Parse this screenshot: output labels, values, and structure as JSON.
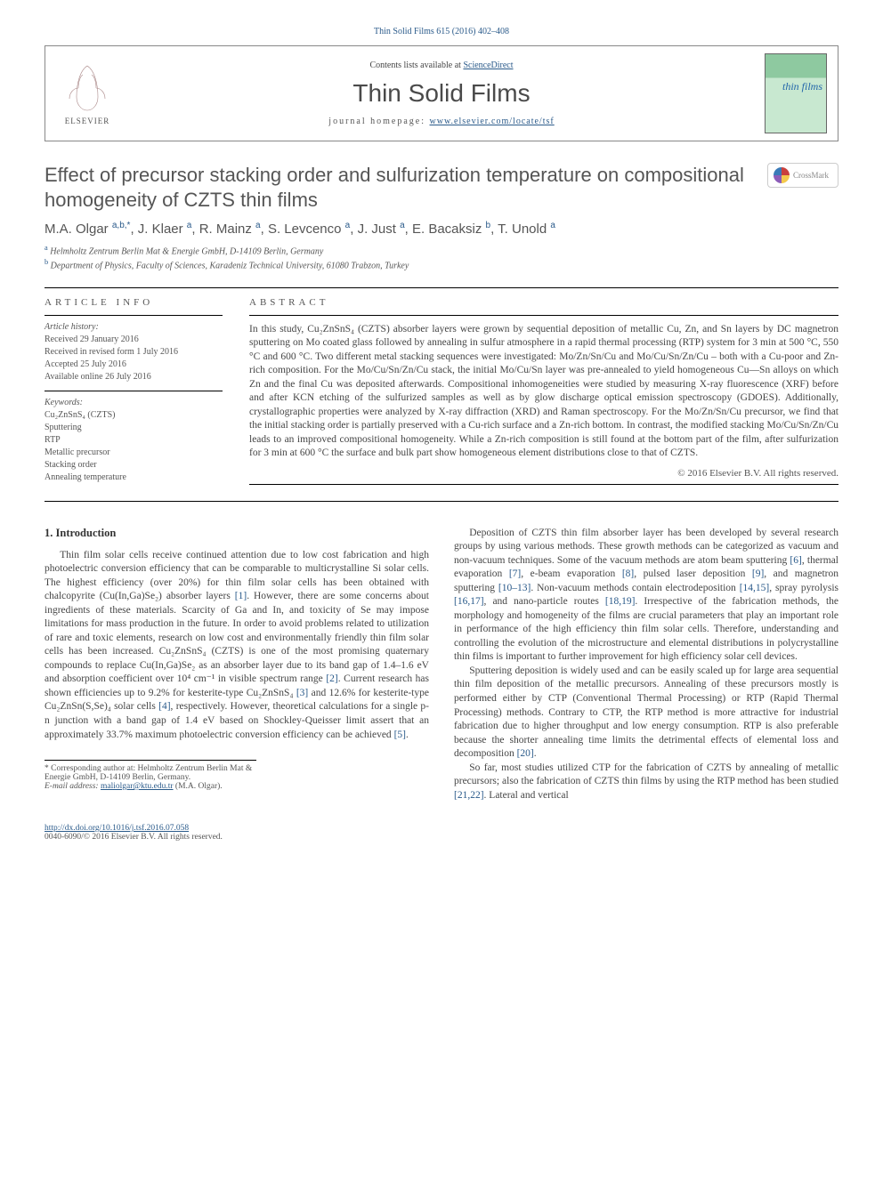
{
  "header": {
    "citation": "Thin Solid Films 615 (2016) 402–408",
    "contents_prefix": "Contents lists available at ",
    "contents_link": "ScienceDirect",
    "journal_title": "Thin Solid Films",
    "homepage_prefix": "journal homepage: ",
    "homepage_url": "www.elsevier.com/locate/tsf",
    "publisher": "ELSEVIER",
    "cover_label": "thin films"
  },
  "article": {
    "title": "Effect of precursor stacking order and sulfurization temperature on compositional homogeneity of CZTS thin films",
    "crossmark": "CrossMark",
    "authors_html": "M.A. Olgar <sup>a,b,*</sup>, J. Klaer <sup>a</sup>, R. Mainz <sup>a</sup>, S. Levcenco <sup>a</sup>, J. Just <sup>a</sup>, E. Bacaksiz <sup>b</sup>, T. Unold <sup>a</sup>",
    "affiliations": [
      {
        "marker": "a",
        "text": "Helmholtz Zentrum Berlin Mat & Energie GmbH, D-14109 Berlin, Germany"
      },
      {
        "marker": "b",
        "text": "Department of Physics, Faculty of Sciences, Karadeniz Technical University, 61080 Trabzon, Turkey"
      }
    ]
  },
  "info": {
    "article_info_head": "article info",
    "abstract_head": "abstract",
    "history_title": "Article history:",
    "history": [
      "Received 29 January 2016",
      "Received in revised form 1 July 2016",
      "Accepted 25 July 2016",
      "Available online 26 July 2016"
    ],
    "keywords_title": "Keywords:",
    "keywords": [
      "Cu₂ZnSnS₄ (CZTS)",
      "Sputtering",
      "RTP",
      "Metallic precursor",
      "Stacking order",
      "Annealing temperature"
    ],
    "abstract": "In this study, Cu₂ZnSnS₄ (CZTS) absorber layers were grown by sequential deposition of metallic Cu, Zn, and Sn layers by DC magnetron sputtering on Mo coated glass followed by annealing in sulfur atmosphere in a rapid thermal processing (RTP) system for 3 min at 500 °C, 550 °C and 600 °C. Two different metal stacking sequences were investigated: Mo/Zn/Sn/Cu and Mo/Cu/Sn/Zn/Cu – both with a Cu-poor and Zn-rich composition. For the Mo/Cu/Sn/Zn/Cu stack, the initial Mo/Cu/Sn layer was pre-annealed to yield homogeneous Cu—Sn alloys on which Zn and the final Cu was deposited afterwards. Compositional inhomogeneities were studied by measuring X-ray fluorescence (XRF) before and after KCN etching of the sulfurized samples as well as by glow discharge optical emission spectroscopy (GDOES). Additionally, crystallographic properties were analyzed by X-ray diffraction (XRD) and Raman spectroscopy. For the Mo/Zn/Sn/Cu precursor, we find that the initial stacking order is partially preserved with a Cu-rich surface and a Zn-rich bottom. In contrast, the modified stacking Mo/Cu/Sn/Zn/Cu leads to an improved compositional homogeneity. While a Zn-rich composition is still found at the bottom part of the film, after sulfurization for 3 min at 600 °C the surface and bulk part show homogeneous element distributions close to that of CZTS.",
    "copyright": "© 2016 Elsevier B.V. All rights reserved."
  },
  "body": {
    "heading": "1. Introduction",
    "left_paragraphs": [
      "Thin film solar cells receive continued attention due to low cost fabrication and high photoelectric conversion efficiency that can be comparable to multicrystalline Si solar cells. The highest efficiency (over 20%) for thin film solar cells has been obtained with chalcopyrite (Cu(In,Ga)Se₂) absorber layers <a class='cite' href='#'>[1]</a>. However, there are some concerns about ingredients of these materials. Scarcity of Ga and In, and toxicity of Se may impose limitations for mass production in the future. In order to avoid problems related to utilization of rare and toxic elements, research on low cost and environmentally friendly thin film solar cells has been increased. Cu₂ZnSnS₄ (CZTS) is one of the most promising quaternary compounds to replace Cu(In,Ga)Se₂ as an absorber layer due to its band gap of 1.4–1.6 eV and absorption coefficient over 10⁴ cm⁻¹ in visible spectrum range <a class='cite' href='#'>[2]</a>. Current research has shown efficiencies up to 9.2% for kesterite-type Cu₂ZnSnS₄ <a class='cite' href='#'>[3]</a> and 12.6% for kesterite-type Cu₂ZnSn(S,Se)₄ solar cells <a class='cite' href='#'>[4]</a>, respectively. However, theoretical calculations for a single p-n junction with a band gap of 1.4 eV based on Shockley-Queisser limit assert that an approximately 33.7% maximum photoelectric conversion efficiency can be achieved <a class='cite' href='#'>[5]</a>."
    ],
    "right_paragraphs": [
      "Deposition of CZTS thin film absorber layer has been developed by several research groups by using various methods. These growth methods can be categorized as vacuum and non-vacuum techniques. Some of the vacuum methods are atom beam sputtering <a class='cite' href='#'>[6]</a>, thermal evaporation <a class='cite' href='#'>[7]</a>, e-beam evaporation <a class='cite' href='#'>[8]</a>, pulsed laser deposition <a class='cite' href='#'>[9]</a>, and magnetron sputtering <a class='cite' href='#'>[10–13]</a>. Non-vacuum methods contain electrodeposition <a class='cite' href='#'>[14,15]</a>, spray pyrolysis <a class='cite' href='#'>[16,17]</a>, and nano-particle routes <a class='cite' href='#'>[18,19]</a>. Irrespective of the fabrication methods, the morphology and homogeneity of the films are crucial parameters that play an important role in performance of the high efficiency thin film solar cells. Therefore, understanding and controlling the evolution of the microstructure and elemental distributions in polycrystalline thin films is important to further improvement for high efficiency solar cell devices.",
      "Sputtering deposition is widely used and can be easily scaled up for large area sequential thin film deposition of the metallic precursors. Annealing of these precursors mostly is performed either by CTP (Conventional Thermal Processing) or RTP (Rapid Thermal Processing) methods. Contrary to CTP, the RTP method is more attractive for industrial fabrication due to higher throughput and low energy consumption. RTP is also preferable because the shorter annealing time limits the detrimental effects of elemental loss and decomposition <a class='cite' href='#'>[20]</a>.",
      "So far, most studies utilized CTP for the fabrication of CZTS by annealing of metallic precursors; also the fabrication of CZTS thin films by using the RTP method has been studied <a class='cite' href='#'>[21,22]</a>. Lateral and vertical"
    ]
  },
  "footnote": {
    "corresponding": "* Corresponding author at: Helmholtz Zentrum Berlin Mat & Energie GmbH, D-14109 Berlin, Germany.",
    "email_label": "E-mail address: ",
    "email": "maliolgar@ktu.edu.tr",
    "email_suffix": " (M.A. Olgar)."
  },
  "footer": {
    "doi": "http://dx.doi.org/10.1016/j.tsf.2016.07.058",
    "issn_line": "0040-6090/© 2016 Elsevier B.V. All rights reserved."
  },
  "colors": {
    "link": "#2a5a8a",
    "text": "#454545",
    "rule": "#000000"
  }
}
